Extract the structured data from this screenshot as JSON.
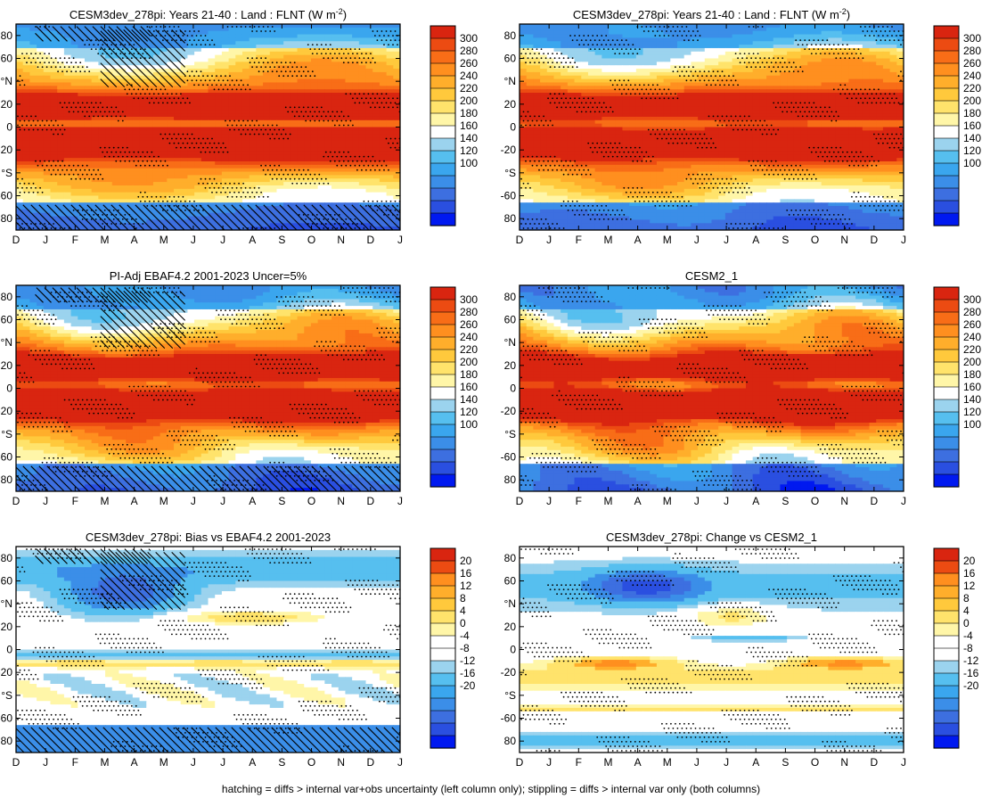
{
  "caption": "hatching = diffs > internal var+obs uncertainty (left column only); stippling = diffs > internal var only (both columns)",
  "chart_data": [
    {
      "type": "heatmap",
      "title": "CESM3dev_278pi: Years 21-40 : Land : FLNT (W m",
      "title_sup": "-2",
      "title_end": ")",
      "field": "abs",
      "x_tick_labels": [
        "D",
        "J",
        "F",
        "M",
        "A",
        "M",
        "J",
        "J",
        "A",
        "S",
        "O",
        "N",
        "D",
        "J"
      ],
      "y_ticks": [
        80,
        60,
        40,
        20,
        0,
        -20,
        -40,
        -60,
        -80
      ],
      "y_tick_labels": [
        "80",
        "60",
        "°N",
        "20",
        "0",
        "-20",
        "°S",
        "-60",
        "80"
      ],
      "ylim": [
        -90,
        90
      ],
      "colorbar_labels": [
        "300",
        "280",
        "260",
        "240",
        "220",
        "200",
        "180",
        "160",
        "140",
        "120",
        "100"
      ],
      "hatching": true,
      "stippling": true
    },
    {
      "type": "heatmap",
      "title": "CESM3dev_278pi: Years 21-40 : Land : FLNT (W m",
      "title_sup": "-2",
      "title_end": ")",
      "field": "abs",
      "x_tick_labels": [
        "D",
        "J",
        "F",
        "M",
        "A",
        "M",
        "J",
        "J",
        "A",
        "S",
        "O",
        "N",
        "D",
        "J"
      ],
      "y_ticks": [
        80,
        60,
        40,
        20,
        0,
        -20,
        -40,
        -60,
        -80
      ],
      "y_tick_labels": [
        "80",
        "60",
        "°N",
        "20",
        "0",
        "-20",
        "°S",
        "-60",
        "80"
      ],
      "ylim": [
        -90,
        90
      ],
      "colorbar_labels": [
        "300",
        "280",
        "260",
        "240",
        "220",
        "200",
        "180",
        "160",
        "140",
        "120",
        "100"
      ],
      "hatching": false,
      "stippling": true
    },
    {
      "type": "heatmap",
      "title": "PI-Adj EBAF4.2 2001-2023 Uncer=5%",
      "field": "abs",
      "x_tick_labels": [
        "D",
        "J",
        "F",
        "M",
        "A",
        "M",
        "J",
        "J",
        "A",
        "S",
        "O",
        "N",
        "D",
        "J"
      ],
      "y_ticks": [
        80,
        60,
        40,
        20,
        0,
        -20,
        -40,
        -60,
        -80
      ],
      "y_tick_labels": [
        "80",
        "60",
        "°N",
        "20",
        "0",
        "-20",
        "°S",
        "-60",
        "80"
      ],
      "ylim": [
        -90,
        90
      ],
      "colorbar_labels": [
        "300",
        "280",
        "260",
        "240",
        "220",
        "200",
        "180",
        "160",
        "140",
        "120",
        "100"
      ],
      "hatching": true,
      "stippling": true
    },
    {
      "type": "heatmap",
      "title": "CESM2_1",
      "field": "abs",
      "x_tick_labels": [
        "D",
        "J",
        "F",
        "M",
        "A",
        "M",
        "J",
        "J",
        "A",
        "S",
        "O",
        "N",
        "D",
        "J"
      ],
      "y_ticks": [
        80,
        60,
        40,
        20,
        0,
        -20,
        -40,
        -60,
        -80
      ],
      "y_tick_labels": [
        "80",
        "60",
        "°N",
        "20",
        "0",
        "-20",
        "°S",
        "-60",
        "80"
      ],
      "ylim": [
        -90,
        90
      ],
      "colorbar_labels": [
        "300",
        "280",
        "260",
        "240",
        "220",
        "200",
        "180",
        "160",
        "140",
        "120",
        "100"
      ],
      "hatching": false,
      "stippling": true
    },
    {
      "type": "heatmap",
      "title": "CESM3dev_278pi: Bias vs EBAF4.2 2001-2023",
      "field": "bias",
      "x_tick_labels": [
        "D",
        "J",
        "F",
        "M",
        "A",
        "M",
        "J",
        "J",
        "A",
        "S",
        "O",
        "N",
        "D",
        "J"
      ],
      "y_ticks": [
        80,
        60,
        40,
        20,
        0,
        -20,
        -40,
        -60,
        -80
      ],
      "y_tick_labels": [
        "80",
        "60",
        "°N",
        "20",
        "0",
        "-20",
        "°S",
        "-60",
        "80"
      ],
      "ylim": [
        -90,
        90
      ],
      "colorbar_labels": [
        "20",
        "16",
        "12",
        "8",
        "4",
        "0",
        "-4",
        "-8",
        "-12",
        "-16",
        "-20"
      ],
      "hatching": true,
      "stippling": true
    },
    {
      "type": "heatmap",
      "title": "CESM3dev_278pi: Change vs CESM2_1",
      "field": "change",
      "x_tick_labels": [
        "D",
        "J",
        "F",
        "M",
        "A",
        "M",
        "J",
        "J",
        "A",
        "S",
        "O",
        "N",
        "D",
        "J"
      ],
      "y_ticks": [
        80,
        60,
        40,
        20,
        0,
        -20,
        -40,
        -60,
        -80
      ],
      "y_tick_labels": [
        "80",
        "60",
        "°N",
        "20",
        "0",
        "-20",
        "°S",
        "-60",
        "80"
      ],
      "ylim": [
        -90,
        90
      ],
      "colorbar_labels": [
        "20",
        "16",
        "12",
        "8",
        "4",
        "0",
        "-4",
        "-8",
        "-12",
        "-16",
        "-20"
      ],
      "hatching": false,
      "stippling": true
    }
  ],
  "colors": {
    "abs_levels": [
      "#0019f0",
      "#2a4fe0",
      "#3d6fe0",
      "#3b8ee8",
      "#3aa6ee",
      "#56bfef",
      "#9bd3ee",
      "#ffffff",
      "#fff6a8",
      "#ffe36b",
      "#ffc93c",
      "#ffae2b",
      "#ff8f1f",
      "#f86d17",
      "#ec4b12",
      "#d92510"
    ],
    "diff_levels": [
      "#0019f0",
      "#2a4fe0",
      "#3d6fe0",
      "#3b8ee8",
      "#3aa6ee",
      "#56bfef",
      "#9bd3ee",
      "#ffffff",
      "#ffffff",
      "#fff6a8",
      "#ffe36b",
      "#ffc93c",
      "#ffae2b",
      "#ff8f1f",
      "#ec4b12",
      "#d92510"
    ]
  }
}
